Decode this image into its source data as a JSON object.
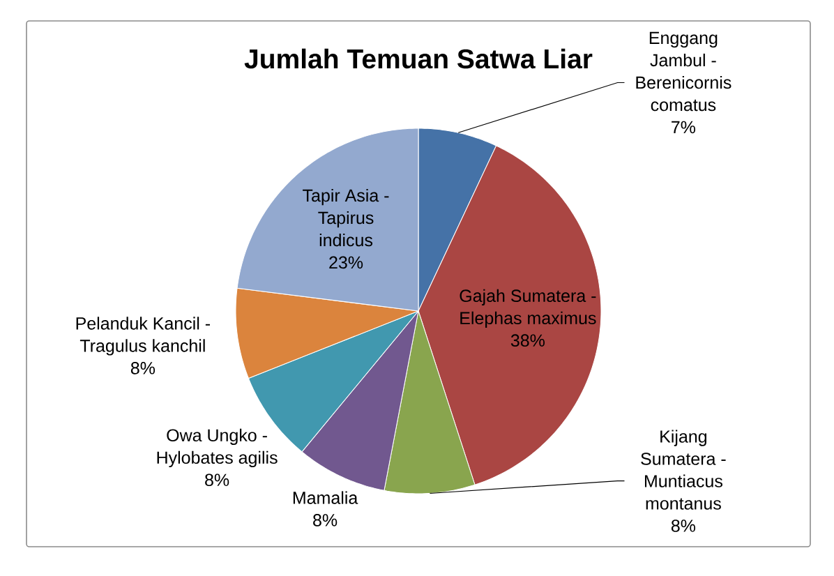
{
  "chart_data": {
    "type": "pie",
    "title": "Jumlah Temuan Satwa Liar",
    "categories": [
      "Enggang Jambul - Berenicornis comatus",
      "Gajah Sumatera - Elephas maximus",
      "Kijang Sumatera - Muntiacus montanus",
      "Mamalia",
      "Owa Ungko - Hylobates agilis",
      "Pelanduk Kancil - Tragulus kanchil",
      "Tapir Asia - Tapirus indicus"
    ],
    "values": [
      7,
      38,
      8,
      8,
      8,
      8,
      23
    ],
    "colors": [
      "#4572a7",
      "#aa4643",
      "#89a54e",
      "#71588f",
      "#4198af",
      "#db843d",
      "#93a9cf"
    ],
    "value_labels": [
      "7%",
      "38%",
      "8%",
      "8%",
      "8%",
      "8%",
      "23%"
    ]
  }
}
